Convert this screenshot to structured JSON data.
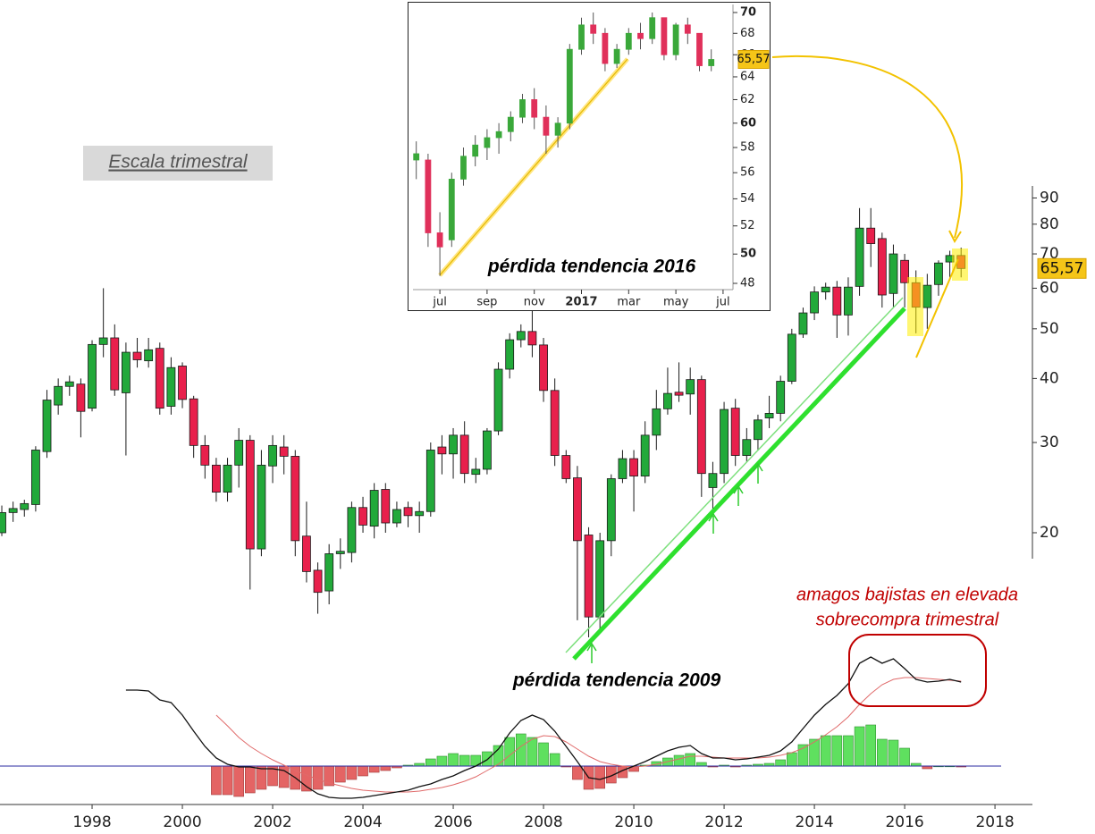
{
  "chart_data": [
    {
      "type": "candlestick",
      "notes": [
        "Escala trimestral",
        "pérdida tendencia 2009"
      ],
      "x": [
        1996,
        1996.25,
        1996.5,
        1996.75,
        1997,
        1997.25,
        1997.5,
        1997.75,
        1998,
        1998.25,
        1998.5,
        1998.75,
        1999,
        1999.25,
        1999.5,
        1999.75,
        2000,
        2000.25,
        2000.5,
        2000.75,
        2001,
        2001.25,
        2001.5,
        2001.75,
        2002,
        2002.25,
        2002.5,
        2002.75,
        2003,
        2003.25,
        2003.5,
        2003.75,
        2004,
        2004.25,
        2004.5,
        2004.75,
        2005,
        2005.25,
        2005.5,
        2005.75,
        2006,
        2006.25,
        2006.5,
        2006.75,
        2007,
        2007.25,
        2007.5,
        2007.75,
        2008,
        2008.25,
        2008.5,
        2008.75,
        2009,
        2009.25,
        2009.5,
        2009.75,
        2010,
        2010.25,
        2010.5,
        2010.75,
        2011,
        2011.25,
        2011.5,
        2011.75,
        2012,
        2012.25,
        2012.5,
        2012.75,
        2013,
        2013.25,
        2013.5,
        2013.75,
        2014,
        2014.25,
        2014.5,
        2014.75,
        2015,
        2015.25,
        2015.5,
        2015.75,
        2016,
        2016.25,
        2016.5,
        2016.75,
        2017,
        2017.25
      ],
      "open": [
        20,
        21.9,
        22.2,
        22.7,
        28.8,
        35.5,
        38.6,
        39,
        35,
        46.6,
        48,
        37.5,
        45,
        43.3,
        45.8,
        35.3,
        42.3,
        36.5,
        29.6,
        27.1,
        24,
        27.1,
        30.3,
        18.6,
        27,
        29.4,
        28.2,
        19.7,
        16.9,
        15.4,
        18.2,
        18.3,
        22.4,
        20.6,
        24.3,
        20.9,
        22.4,
        21.6,
        22,
        29.4,
        28.5,
        31,
        26,
        26.6,
        31.6,
        41.7,
        47.6,
        49.4,
        46.5,
        37.9,
        28.3,
        25.6,
        19.8,
        13.7,
        19.3,
        25.5,
        27.9,
        25.8,
        31,
        34.9,
        37.6,
        37.3,
        39.8,
        24.5,
        26.1,
        35,
        28.3,
        30.4,
        33.5,
        34.2,
        39.5,
        48.8,
        53.7,
        59,
        60.3,
        53.2,
        60.5,
        78.6,
        75,
        58.6,
        68,
        61.5,
        55,
        61,
        67.5,
        69.5
      ],
      "high": [
        22.6,
        23,
        23.2,
        29.5,
        38,
        40,
        40.5,
        40,
        47.5,
        60,
        51,
        47,
        48,
        48,
        47,
        44,
        43,
        37,
        31,
        28,
        28,
        32,
        31,
        29,
        31,
        31,
        29,
        23,
        17.5,
        19,
        19.5,
        23,
        23.5,
        25,
        25,
        23,
        23,
        23,
        30,
        31,
        32,
        33,
        28,
        32,
        43,
        49,
        51,
        55,
        48,
        40,
        29,
        27,
        20.5,
        20,
        26,
        29,
        29,
        33,
        38,
        42,
        43,
        42,
        40.5,
        27.5,
        36,
        36.5,
        32,
        34,
        37,
        40.5,
        50,
        55,
        60.5,
        61.5,
        62,
        63,
        86,
        86,
        77,
        73,
        70,
        65,
        64,
        68,
        71,
        72
      ],
      "low": [
        19.7,
        21,
        21.5,
        22,
        28,
        34,
        37,
        30.7,
        34.5,
        44,
        37,
        28.3,
        42,
        42,
        34,
        34,
        35,
        28,
        25.5,
        23,
        23,
        24.5,
        15.5,
        18,
        25,
        26,
        18,
        16,
        13.9,
        14.5,
        17,
        17.5,
        20,
        19.5,
        20,
        20.5,
        20.5,
        20,
        21.5,
        26,
        25.5,
        25,
        25,
        26,
        31,
        40,
        46,
        44,
        36,
        27,
        25,
        13.5,
        12.5,
        12.8,
        18,
        25,
        22,
        25,
        29,
        34,
        36,
        34,
        23.5,
        22,
        25,
        27,
        27.5,
        29,
        32,
        33,
        39,
        48,
        52,
        57,
        48,
        48.5,
        58,
        66,
        55,
        55,
        55,
        49,
        50,
        58,
        63,
        63
      ],
      "close": [
        21.9,
        22.3,
        22.8,
        29,
        36.3,
        38.6,
        39.4,
        34.5,
        46.6,
        48,
        38,
        45,
        43.5,
        45.5,
        35,
        42,
        36.4,
        29.6,
        27.1,
        24,
        27.1,
        30.3,
        18.6,
        27.1,
        29.6,
        28.2,
        19.3,
        16.8,
        15.3,
        18.2,
        18.4,
        22.4,
        20.7,
        24.2,
        20.9,
        22.2,
        21.6,
        22,
        29,
        28.5,
        31,
        26.1,
        26.6,
        31.6,
        41.7,
        47.6,
        49.4,
        46.5,
        37.9,
        28.3,
        25.5,
        19.3,
        13.7,
        19.3,
        25.5,
        27.9,
        25.8,
        31,
        34.9,
        37.4,
        37.1,
        39.8,
        26.1,
        26.1,
        34.8,
        28.3,
        30.4,
        33.2,
        34.2,
        39.5,
        48.8,
        53.7,
        59,
        60.3,
        53.2,
        60.3,
        78.6,
        73.3,
        58.2,
        70,
        61.5,
        55.1,
        60.8,
        67.2,
        69.5,
        65.57
      ],
      "up_color": "#22a93a",
      "down_color": "#e8204c",
      "wick_color": "#1a1a1a",
      "log_scale": true,
      "ylim": [
        17.8,
        95
      ],
      "yticks": [
        20,
        30,
        40,
        50,
        60,
        70,
        80,
        90
      ],
      "xlim": [
        1995.96,
        2018.83
      ],
      "xticks": [
        1998,
        2000,
        2002,
        2004,
        2006,
        2008,
        2010,
        2012,
        2014,
        2016,
        2018
      ],
      "last": {
        "value": 65.57,
        "label": "65,57"
      }
    },
    {
      "type": "macd",
      "notes": [
        "amagos bajistas en elevada",
        "sobrecompra trimestral"
      ],
      "x": [
        1996,
        1996.25,
        1996.5,
        1996.75,
        1997,
        1997.25,
        1997.5,
        1997.75,
        1998,
        1998.25,
        1998.5,
        1998.75,
        1999,
        1999.25,
        1999.5,
        1999.75,
        2000,
        2000.25,
        2000.5,
        2000.75,
        2001,
        2001.25,
        2001.5,
        2001.75,
        2002,
        2002.25,
        2002.5,
        2002.75,
        2003,
        2003.25,
        2003.5,
        2003.75,
        2004,
        2004.25,
        2004.5,
        2004.75,
        2005,
        2005.25,
        2005.5,
        2005.75,
        2006,
        2006.25,
        2006.5,
        2006.75,
        2007,
        2007.25,
        2007.5,
        2007.75,
        2008,
        2008.25,
        2008.5,
        2008.75,
        2009,
        2009.25,
        2009.5,
        2009.75,
        2010,
        2010.25,
        2010.5,
        2010.75,
        2011,
        2011.25,
        2011.5,
        2011.75,
        2012,
        2012.25,
        2012.5,
        2012.75,
        2013,
        2013.25,
        2013.5,
        2013.75,
        2014,
        2014.25,
        2014.5,
        2014.75,
        2015,
        2015.25,
        2015.5,
        2015.75,
        2016,
        2016.25,
        2016.5,
        2016.75,
        2017,
        2017.25
      ],
      "macd": [
        null,
        null,
        null,
        null,
        null,
        null,
        null,
        null,
        null,
        null,
        null,
        8.5,
        8.5,
        8.4,
        7.4,
        7.1,
        5.7,
        3.9,
        2.2,
        0.9,
        0.2,
        -0.1,
        -0.1,
        -0.3,
        -0.3,
        -0.5,
        -1.3,
        -2.3,
        -3.1,
        -3.5,
        -3.6,
        -3.6,
        -3.5,
        -3.3,
        -3.1,
        -2.9,
        -2.7,
        -2.3,
        -2.0,
        -1.5,
        -1.1,
        -0.5,
        0,
        0.7,
        1.9,
        3.7,
        5.1,
        5.7,
        5.2,
        3.9,
        2.2,
        0.5,
        -1.3,
        -1.5,
        -1.1,
        -0.5,
        0,
        0.5,
        1.1,
        1.7,
        2.1,
        2.3,
        1.4,
        0.9,
        0.9,
        0.7,
        0.8,
        1.0,
        1.2,
        1.7,
        2.7,
        4.2,
        5.7,
        6.9,
        7.9,
        9.2,
        11.5,
        12.2,
        11.5,
        12.0,
        10.9,
        9.7,
        9.4,
        9.5,
        9.7,
        9.4
      ],
      "signal": [
        null,
        null,
        null,
        null,
        null,
        null,
        null,
        null,
        null,
        null,
        null,
        null,
        null,
        null,
        null,
        null,
        null,
        null,
        null,
        5.7,
        4.5,
        3.2,
        2.2,
        1.4,
        0.7,
        0.1,
        -0.5,
        -1.0,
        -1.5,
        -1.9,
        -2.2,
        -2.5,
        -2.7,
        -2.8,
        -2.9,
        -2.9,
        -2.9,
        -2.8,
        -2.6,
        -2.4,
        -2.1,
        -1.7,
        -1.2,
        -0.5,
        0.2,
        1.2,
        2.2,
        3.0,
        3.4,
        3.3,
        2.7,
        1.9,
        1.1,
        0.5,
        0.2,
        0,
        -0.1,
        0,
        0.2,
        0.5,
        0.8,
        1.1,
        1.1,
        1.0,
        0.9,
        0.9,
        0.9,
        0.9,
        1.0,
        1.2,
        1.5,
        2.0,
        2.7,
        3.5,
        4.4,
        5.5,
        6.9,
        8.1,
        9.1,
        9.7,
        9.9,
        9.9,
        9.8,
        9.7,
        9.6,
        9.5
      ],
      "histogram": [
        null,
        null,
        null,
        null,
        null,
        null,
        null,
        null,
        null,
        null,
        null,
        null,
        null,
        null,
        null,
        null,
        null,
        null,
        null,
        -3.2,
        -3.2,
        -3.4,
        -3.0,
        -2.6,
        -2.2,
        -2.4,
        -2.6,
        -2.8,
        -2.6,
        -2.2,
        -1.8,
        -1.5,
        -1.1,
        -0.7,
        -0.5,
        -0.2,
        0.1,
        0.3,
        0.8,
        1.1,
        1.4,
        1.2,
        1.2,
        1.6,
        2.3,
        3.2,
        3.6,
        3.2,
        2.6,
        1.4,
        -0.1,
        -1.5,
        -2.6,
        -2.5,
        -1.9,
        -1.3,
        -0.6,
        0.1,
        0.5,
        0.9,
        1.2,
        1.4,
        0.4,
        -0.1,
        0.1,
        -0.1,
        0.1,
        0.2,
        0.3,
        0.7,
        1.5,
        2.4,
        3.0,
        3.4,
        3.4,
        3.4,
        4.4,
        4.6,
        3.0,
        2.9,
        2.0,
        0.3,
        -0.3,
        0,
        0,
        -0.1
      ],
      "macd_color": "#111111",
      "signal_color": "#e06a6a",
      "pos_color": "#5fe05f",
      "neg_color": "#e46464",
      "zero_color": "#2a2aa0",
      "ylim": [
        -4.5,
        13
      ],
      "xlim": [
        1995.96,
        2018.83
      ]
    },
    {
      "type": "candlestick",
      "title": "pérdida tendencia 2016",
      "x": [
        6,
        6.5,
        7,
        7.5,
        8,
        8.5,
        9,
        9.5,
        10,
        10.5,
        11,
        11.5,
        12,
        12.5,
        13,
        13.5,
        14,
        14.5,
        15,
        15.5,
        16,
        16.5,
        17,
        17.5,
        18,
        18.5
      ],
      "open": [
        57,
        57,
        51.5,
        51,
        55.5,
        57.3,
        58,
        58.8,
        59.3,
        60.5,
        62,
        60.5,
        59,
        60,
        66.5,
        68.8,
        68,
        65.2,
        66.5,
        68,
        67.5,
        69.5,
        66,
        68.8,
        68,
        65
      ],
      "high": [
        58.5,
        57.5,
        53,
        56,
        58,
        59,
        59.5,
        60,
        61,
        62.5,
        63,
        61.5,
        60.5,
        67,
        69.5,
        70,
        68.5,
        67,
        68.5,
        69,
        70,
        69.5,
        69,
        69.5,
        68,
        66.5
      ],
      "low": [
        55.5,
        50.5,
        48.5,
        50.5,
        55,
        56.5,
        57,
        57.5,
        58.5,
        60,
        59.5,
        57.5,
        58,
        59.5,
        66,
        67,
        64.5,
        64.8,
        66,
        66.5,
        67,
        65.5,
        65.5,
        67,
        64.5,
        64.5
      ],
      "close": [
        57.5,
        51.5,
        50.5,
        55.5,
        57.3,
        58.2,
        58.8,
        59.3,
        60.5,
        62,
        60.5,
        59,
        60,
        66.5,
        68.8,
        68,
        65.2,
        66.5,
        68,
        67.5,
        69.5,
        66,
        68.8,
        68,
        65,
        65.57
      ],
      "up_color": "#3aa83a",
      "down_color": "#e0305a",
      "wick_color": "#555555",
      "log_scale": true,
      "ylim": [
        48,
        70
      ],
      "yticks": [
        48,
        50,
        52,
        54,
        56,
        58,
        60,
        62,
        64,
        66,
        68,
        70
      ],
      "xlim": [
        5.86,
        19.42
      ],
      "xticks": [
        {
          "value": 7,
          "label": "jul"
        },
        {
          "value": 9,
          "label": "sep"
        },
        {
          "value": 11,
          "label": "nov"
        },
        {
          "value": 13,
          "label": "2017"
        },
        {
          "value": 15,
          "label": "mar"
        },
        {
          "value": 17,
          "label": "may"
        },
        {
          "value": 19,
          "label": "jul"
        }
      ],
      "last": {
        "value": 65.57,
        "label": "65,57"
      }
    }
  ]
}
